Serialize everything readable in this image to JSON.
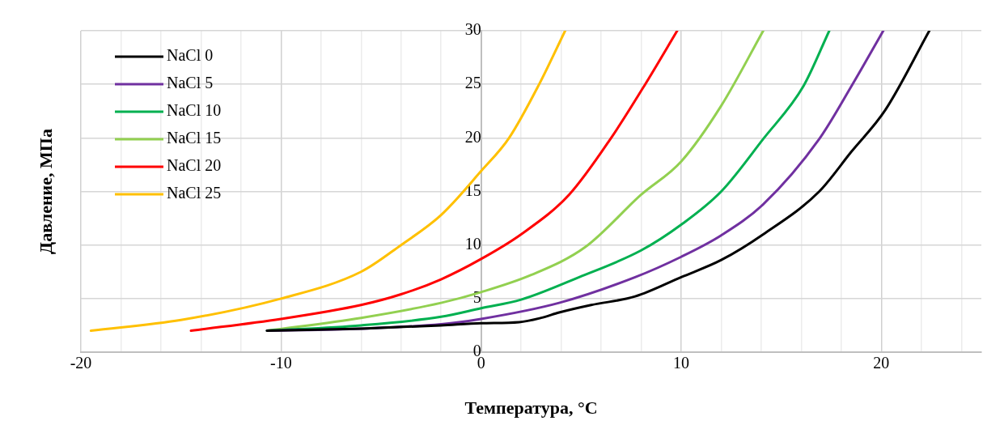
{
  "chart_data": {
    "type": "line",
    "xlabel": "Температура, °C",
    "ylabel": "Давление, МПа",
    "xlim": [
      -20,
      25
    ],
    "ylim": [
      0,
      30
    ],
    "xticks": [
      -20,
      {
        "value": -18,
        "label": null
      },
      {
        "value": -16,
        "label": null
      },
      {
        "value": -14,
        "label": null
      },
      {
        "value": -12,
        "label": null
      },
      -10,
      {
        "value": -8,
        "label": null
      },
      {
        "value": -6,
        "label": null
      },
      {
        "value": -4,
        "label": null
      },
      {
        "value": -2,
        "label": null
      },
      0,
      {
        "value": 2,
        "label": null
      },
      {
        "value": 4,
        "label": null
      },
      {
        "value": 6,
        "label": null
      },
      {
        "value": 8,
        "label": null
      },
      10,
      {
        "value": 12,
        "label": null
      },
      {
        "value": 14,
        "label": null
      },
      {
        "value": 16,
        "label": null
      },
      {
        "value": 18,
        "label": null
      },
      20,
      {
        "value": 22,
        "label": null
      },
      {
        "value": 24,
        "label": null
      }
    ],
    "yticks": [
      0,
      5,
      10,
      15,
      20,
      25,
      30
    ],
    "grid": true,
    "legend": "top left",
    "marker": "none",
    "line_style": "solid",
    "series": [
      {
        "name": "NaCl 0",
        "color": "#000000",
        "x": [
          -10.7,
          -6,
          -2,
          0,
          1.9,
          3,
          3.9,
          5.5,
          7.7,
          10,
          12,
          14.1,
          16.9,
          18.5,
          20.2,
          22.4
        ],
        "values": [
          2,
          2.2,
          2.5,
          2.7,
          2.8,
          3.2,
          3.7,
          4.4,
          5.2,
          7,
          8.6,
          11,
          15,
          18.7,
          22.6,
          30
        ]
      },
      {
        "name": "NaCl 5",
        "color": "#7030a0",
        "x": [
          -10.7,
          -6,
          -2,
          0,
          3.9,
          7.7,
          10,
          12,
          14.1,
          16.9,
          18.5,
          20.1
        ],
        "values": [
          2,
          2.2,
          2.6,
          3.1,
          4.6,
          7,
          8.9,
          10.9,
          13.8,
          19.9,
          24.8,
          30
        ]
      },
      {
        "name": "NaCl 10",
        "color": "#00b050",
        "x": [
          -10.7,
          -6,
          -2,
          0,
          2,
          4.9,
          8,
          10,
          12,
          14.1,
          16.1,
          17.4
        ],
        "values": [
          2,
          2.5,
          3.3,
          4.1,
          4.9,
          7,
          9.5,
          11.9,
          15,
          19.9,
          24.8,
          30
        ]
      },
      {
        "name": "NaCl 15",
        "color": "#92d050",
        "x": [
          -10.7,
          -6,
          -2,
          0,
          2.5,
          5.2,
          8,
          10,
          12,
          14.1
        ],
        "values": [
          2,
          3.2,
          4.6,
          5.6,
          7.2,
          9.8,
          14.7,
          17.8,
          23,
          30
        ]
      },
      {
        "name": "NaCl 20",
        "color": "#ff0000",
        "x": [
          -14.5,
          -10,
          -6,
          -4,
          -2,
          0,
          2,
          4.4,
          6.5,
          8.2,
          9.8
        ],
        "values": [
          2,
          3.1,
          4.4,
          5.4,
          6.8,
          8.7,
          11,
          14.7,
          20,
          25,
          30
        ]
      },
      {
        "name": "NaCl 25",
        "color": "#ffc000",
        "x": [
          -19.5,
          -15,
          -10,
          -6,
          -4,
          -2,
          0,
          1.4,
          2.9,
          4.2
        ],
        "values": [
          2,
          3,
          5,
          7.5,
          10,
          12.8,
          16.9,
          20,
          25,
          30
        ]
      }
    ]
  }
}
